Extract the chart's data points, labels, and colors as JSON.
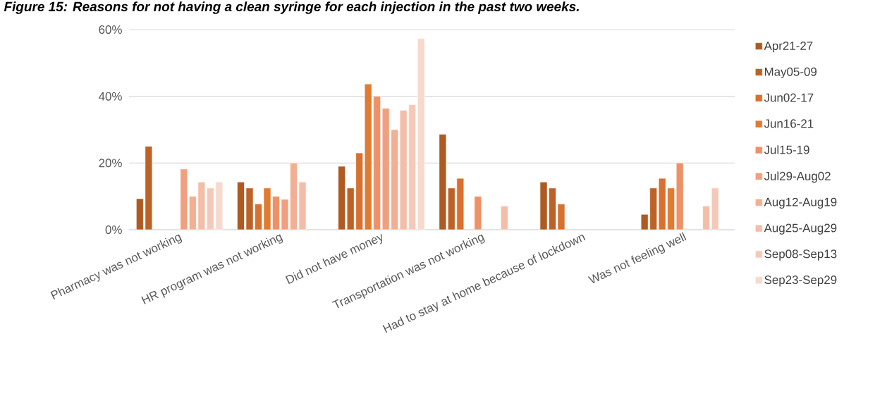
{
  "chart_data": {
    "type": "bar",
    "title": "Figure 15: Reasons for not having a clean syringe for each injection in the past two weeks.",
    "categories": [
      "Pharmacy was not working",
      "HR program was not working",
      "Did not have money",
      "Transportation was not working",
      "Had to stay at home because of lockdown",
      "Was not feeling well"
    ],
    "series": [
      {
        "name": "Apr21-27",
        "color": "#ae5a21",
        "values": [
          9.3,
          14.3,
          19,
          28.6,
          14.3,
          4.6
        ]
      },
      {
        "name": "May05-09",
        "color": "#bd6226",
        "values": [
          25,
          12.5,
          12.5,
          12.5,
          12.5,
          12.5
        ]
      },
      {
        "name": "Jun02-17",
        "color": "#d8712f",
        "values": [
          null,
          7.7,
          23,
          15.4,
          7.7,
          15.4
        ]
      },
      {
        "name": "Jun16-21",
        "color": "#e07b32",
        "values": [
          null,
          12.5,
          43.7,
          null,
          null,
          12.5
        ]
      },
      {
        "name": "Jul15-19",
        "color": "#ef9166",
        "values": [
          null,
          10,
          40,
          10,
          null,
          20
        ]
      },
      {
        "name": "Jul29-Aug02",
        "color": "#f1a07f",
        "values": [
          18.2,
          9.1,
          36.4,
          null,
          null,
          null
        ]
      },
      {
        "name": "Aug12-Aug19",
        "color": "#f3af94",
        "values": [
          10,
          20,
          30,
          null,
          null,
          null
        ]
      },
      {
        "name": "Aug25-Aug29",
        "color": "#f4bda8",
        "values": [
          14.3,
          14.3,
          35.8,
          7.1,
          null,
          7.1
        ]
      },
      {
        "name": "Sep08-Sep13",
        "color": "#f5c9b9",
        "values": [
          12.5,
          null,
          37.5,
          null,
          null,
          12.5
        ]
      },
      {
        "name": "Sep23-Sep29",
        "color": "#f7d9ce",
        "values": [
          14.3,
          null,
          57.3,
          null,
          null,
          null
        ]
      }
    ],
    "ylim": [
      0,
      60
    ],
    "yticks": [
      {
        "value": 0,
        "label": "0%"
      },
      {
        "value": 20,
        "label": "20%"
      },
      {
        "value": 40,
        "label": "40%"
      },
      {
        "value": 60,
        "label": "60%"
      }
    ],
    "grid": "y",
    "legend": "right"
  }
}
